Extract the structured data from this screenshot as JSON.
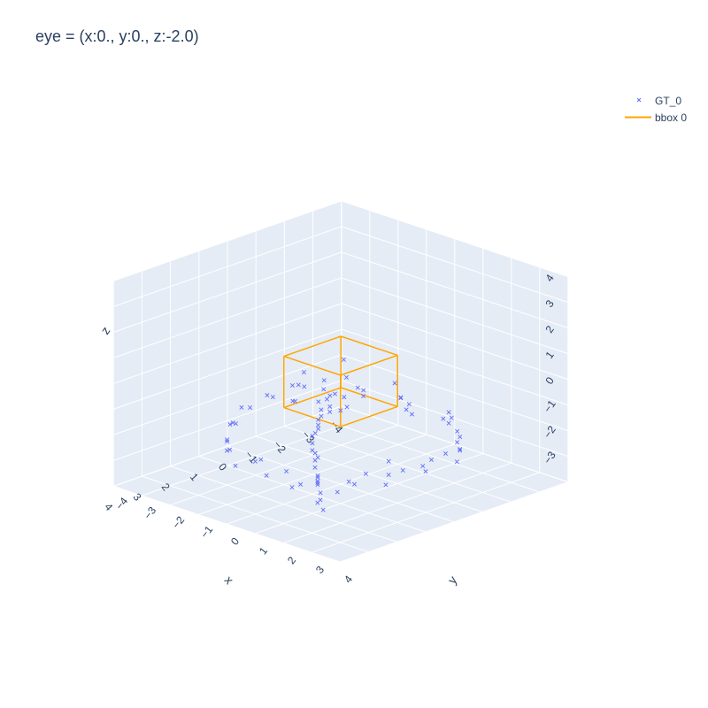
{
  "title": "eye = (x:0., y:0., z:-2.0)",
  "legend": [
    {
      "name": "GT_0",
      "symbol": "x-marker",
      "color": "#636efa"
    },
    {
      "name": "bbox 0",
      "symbol": "line",
      "color": "#FFA500"
    }
  ],
  "axes": {
    "x": {
      "label": "x",
      "ticks": [
        "4",
        "3",
        "2",
        "1",
        "0",
        "−1",
        "−2",
        "−3",
        "−4"
      ]
    },
    "y": {
      "label": "y",
      "ticks": [
        "−4",
        "−3",
        "−2",
        "−1",
        "0",
        "1",
        "2",
        "3",
        "4"
      ]
    },
    "z": {
      "label": "z",
      "ticks": [
        "4",
        "3",
        "2",
        "1",
        "0",
        "−1",
        "−2",
        "−3"
      ]
    }
  },
  "chart_data": {
    "type": "scatter",
    "title": "eye = (x:0., y:0., z:-2.0)",
    "xlabel": "x",
    "ylabel": "y",
    "zlabel": "z",
    "xlim": [
      -4,
      4
    ],
    "ylim": [
      -4,
      4
    ],
    "zlim": [
      -4,
      4
    ],
    "camera_eye": {
      "x": 0,
      "y": 0,
      "z": -2.0
    },
    "series": [
      {
        "name": "GT_0",
        "mode": "markers",
        "marker": "x",
        "color": "#636efa",
        "points": [
          [
            -3.2,
            -3.1,
            -3.0
          ],
          [
            -3.0,
            -2.8,
            -3.2
          ],
          [
            -2.9,
            -3.3,
            -2.9
          ],
          [
            -2.6,
            -3.0,
            -3.1
          ],
          [
            -2.4,
            -2.9,
            -2.7
          ],
          [
            -2.2,
            -2.6,
            -3.0
          ],
          [
            -2.0,
            -2.8,
            -2.6
          ],
          [
            -1.7,
            -2.4,
            -2.9
          ],
          [
            -1.5,
            -2.2,
            -2.5
          ],
          [
            -1.2,
            -2.0,
            -2.7
          ],
          [
            -1.0,
            -1.8,
            -2.9
          ],
          [
            -0.8,
            -1.6,
            -2.6
          ],
          [
            -0.4,
            -1.4,
            -2.8
          ],
          [
            -0.2,
            -1.1,
            -2.5
          ],
          [
            0.1,
            -0.9,
            -2.7
          ],
          [
            0.3,
            -0.6,
            -2.9
          ],
          [
            0.6,
            -0.4,
            -2.6
          ],
          [
            0.8,
            -0.1,
            -2.8
          ],
          [
            1.0,
            0.2,
            -2.5
          ],
          [
            1.3,
            0.4,
            -2.7
          ],
          [
            1.5,
            0.7,
            -2.9
          ],
          [
            1.8,
            1.0,
            -2.6
          ],
          [
            2.0,
            1.2,
            -2.8
          ],
          [
            2.3,
            1.5,
            -2.5
          ],
          [
            2.5,
            1.8,
            -2.7
          ],
          [
            2.8,
            2.0,
            -2.9
          ],
          [
            3.0,
            2.3,
            -2.6
          ],
          [
            3.2,
            2.6,
            -2.8
          ],
          [
            -3.1,
            -1.0,
            -2.2
          ],
          [
            -2.8,
            -0.7,
            -2.0
          ],
          [
            -2.7,
            -0.4,
            -2.3
          ],
          [
            -2.5,
            -0.1,
            -1.9
          ],
          [
            -2.3,
            0.2,
            -2.1
          ],
          [
            -3.0,
            0.6,
            -2.4
          ],
          [
            -2.9,
            0.9,
            -2.0
          ],
          [
            -2.6,
            1.2,
            -2.2
          ],
          [
            -2.4,
            1.5,
            -1.8
          ],
          [
            -2.2,
            1.9,
            -2.1
          ],
          [
            -1.9,
            2.2,
            -2.3
          ],
          [
            -1.7,
            2.5,
            -1.9
          ],
          [
            -1.4,
            2.8,
            -2.2
          ],
          [
            -1.2,
            3.0,
            -2.0
          ],
          [
            -0.9,
            3.2,
            -2.3
          ],
          [
            -0.6,
            3.1,
            -1.9
          ],
          [
            -0.3,
            2.9,
            -2.1
          ],
          [
            0.0,
            3.0,
            -2.4
          ],
          [
            0.3,
            3.2,
            -2.0
          ],
          [
            0.6,
            2.8,
            -2.2
          ],
          [
            0.9,
            2.6,
            -1.8
          ],
          [
            1.2,
            2.9,
            -2.1
          ],
          [
            1.5,
            3.1,
            -2.3
          ],
          [
            1.8,
            2.7,
            -1.9
          ],
          [
            2.1,
            2.4,
            -2.2
          ],
          [
            2.4,
            2.9,
            -2.0
          ],
          [
            2.7,
            2.6,
            -2.3
          ],
          [
            3.0,
            2.2,
            -1.9
          ],
          [
            3.2,
            1.8,
            -2.1
          ],
          [
            3.1,
            1.4,
            -2.4
          ],
          [
            2.9,
            1.0,
            -2.0
          ],
          [
            3.2,
            0.6,
            -2.2
          ],
          [
            3.0,
            0.2,
            -1.8
          ],
          [
            2.8,
            -0.2,
            -2.1
          ],
          [
            3.1,
            -0.6,
            -2.3
          ],
          [
            2.9,
            -1.0,
            -1.9
          ],
          [
            2.6,
            -1.4,
            -2.2
          ],
          [
            2.3,
            -1.7,
            -2.0
          ],
          [
            2.0,
            -2.0,
            -2.3
          ],
          [
            1.6,
            -2.3,
            -1.9
          ],
          [
            1.2,
            -2.6,
            -2.1
          ],
          [
            0.8,
            -2.9,
            -2.4
          ],
          [
            0.4,
            -3.1,
            -2.0
          ],
          [
            0.0,
            -3.2,
            -2.2
          ],
          [
            -0.4,
            -3.0,
            -1.8
          ],
          [
            -0.8,
            -3.2,
            -2.1
          ],
          [
            -1.2,
            -2.9,
            -2.3
          ],
          [
            -1.6,
            -3.1,
            -1.9
          ],
          [
            -2.0,
            -3.3,
            -2.2
          ],
          [
            -2.4,
            -3.0,
            -2.0
          ],
          [
            -0.5,
            0.1,
            -0.4
          ],
          [
            -0.2,
            0.6,
            -0.2
          ],
          [
            0.3,
            -0.3,
            -0.3
          ],
          [
            0.6,
            0.4,
            -0.1
          ],
          [
            0.1,
            0.9,
            -0.2
          ],
          [
            -0.7,
            -0.5,
            -0.3
          ],
          [
            0.9,
            -0.8,
            -0.1
          ],
          [
            -1.1,
            0.8,
            -0.2
          ],
          [
            1.1,
            1.1,
            -0.3
          ],
          [
            -1.3,
            -1.2,
            -0.1
          ],
          [
            -0.1,
            -1.4,
            -0.2
          ],
          [
            1.4,
            -0.2,
            -0.3
          ]
        ]
      },
      {
        "name": "bbox 0",
        "mode": "lines",
        "color": "#FFA500",
        "corners": {
          "x": [
            -1.0,
            1.0
          ],
          "y": [
            -1.0,
            1.0
          ],
          "z": [
            -1.0,
            1.0
          ]
        }
      }
    ]
  }
}
